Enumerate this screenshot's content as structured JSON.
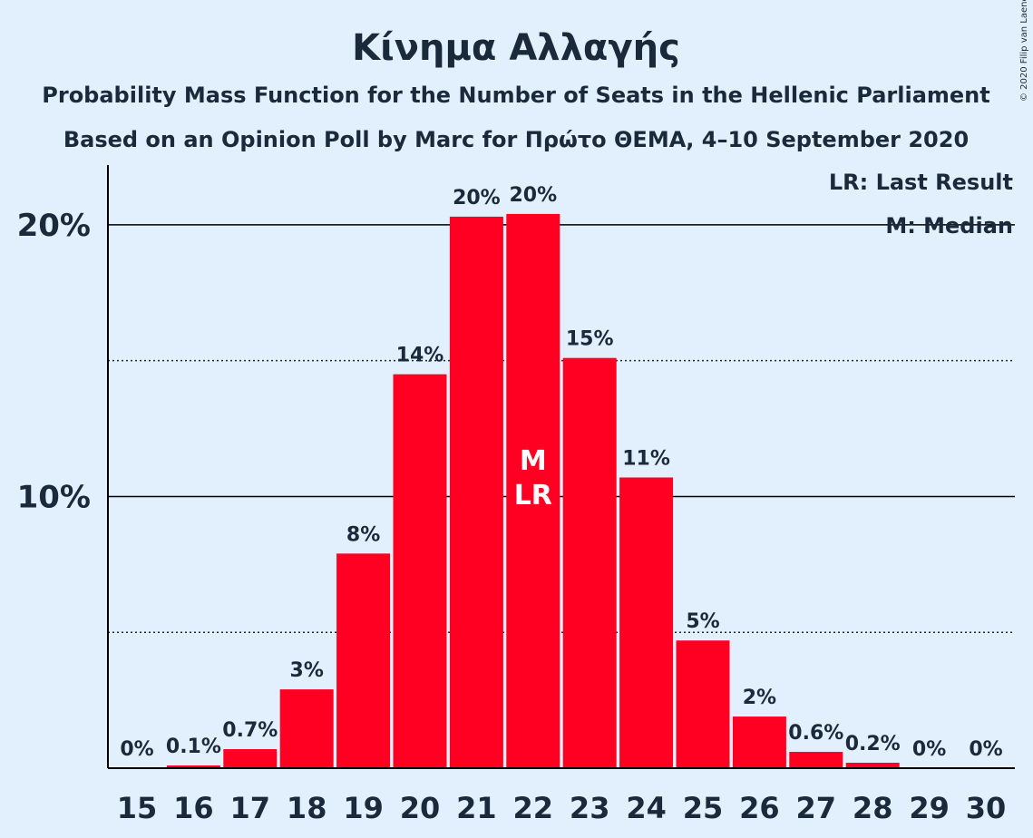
{
  "copyright": "© 2020 Filip van Laenen",
  "chart_data": {
    "type": "bar",
    "title": "Κίνημα Αλλαγής",
    "subtitle_lines": [
      "Probability Mass Function for the Number of Seats in the Hellenic Parliament",
      "Based on an Opinion Poll by Marc for Πρώτο ΘΕΜΑ, 4–10 September 2020"
    ],
    "xlabel": "",
    "ylabel": "",
    "categories": [
      "15",
      "16",
      "17",
      "18",
      "19",
      "20",
      "21",
      "22",
      "23",
      "24",
      "25",
      "26",
      "27",
      "28",
      "29",
      "30"
    ],
    "values": [
      0,
      0.1,
      0.7,
      2.9,
      7.9,
      14.5,
      20.3,
      20.4,
      15.1,
      10.7,
      4.7,
      1.9,
      0.6,
      0.2,
      0,
      0
    ],
    "labels": [
      "0%",
      "0.1%",
      "0.7%",
      "3%",
      "8%",
      "14%",
      "20%",
      "20%",
      "15%",
      "11%",
      "5%",
      "2%",
      "0.6%",
      "0.2%",
      "0%",
      "0%"
    ],
    "ylim": [
      0,
      22.2
    ],
    "y_ticks": [
      {
        "value": 10,
        "label": "10%"
      },
      {
        "value": 20,
        "label": "20%"
      }
    ],
    "y_dotted_gridlines": [
      5,
      15
    ],
    "bar_color": "#ff0022",
    "text_color": "#1b2a3a",
    "background": "#e2f0fe",
    "markers": [
      {
        "category": "22",
        "lines": [
          "M",
          "LR"
        ]
      }
    ],
    "legend": {
      "position": "top-right",
      "items": [
        "LR: Last Result",
        "M: Median"
      ]
    }
  }
}
